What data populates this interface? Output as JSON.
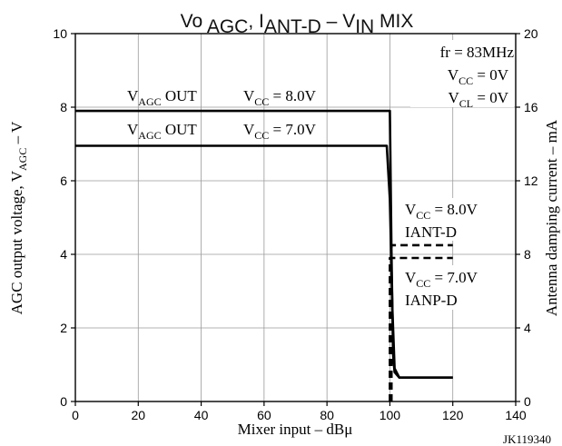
{
  "chart_data": {
    "type": "line",
    "title": {
      "part1": "Vo ",
      "part2": "AGC",
      "part3": ", I",
      "part4": "ANT-D",
      "part5": " – V",
      "part6": "IN",
      "part7": " MIX"
    },
    "xlabel": "Mixer input – dBμ",
    "ylabel_left": {
      "pre": "AGC output voltage, V",
      "sub": "AGC",
      "post": " – V"
    },
    "ylabel_right": "Antenna damping current – mA",
    "xlim": [
      0,
      140
    ],
    "ylim_left": [
      0,
      10
    ],
    "ylim_right": [
      0,
      20
    ],
    "x_ticks": [
      "0",
      "20",
      "40",
      "60",
      "80",
      "100",
      "120",
      "140"
    ],
    "y_left_ticks": [
      "0",
      "2",
      "4",
      "6",
      "8",
      "10"
    ],
    "y_right_ticks": [
      "0",
      "4",
      "8",
      "12",
      "16",
      "20"
    ],
    "grid": true,
    "series": [
      {
        "name": "VAGC OUT VCC = 8.0V",
        "axis": "left",
        "style": "solid",
        "points": [
          [
            0,
            7.9
          ],
          [
            100,
            7.9
          ],
          [
            100.5,
            4.0
          ],
          [
            101,
            1.3
          ],
          [
            101.5,
            0.8
          ],
          [
            103,
            0.65
          ],
          [
            120,
            0.65
          ]
        ]
      },
      {
        "name": "VAGC OUT VCC = 7.0V",
        "axis": "left",
        "style": "solid",
        "points": [
          [
            0,
            6.95
          ],
          [
            99,
            6.95
          ],
          [
            100,
            5.5
          ],
          [
            100.8,
            2.5
          ],
          [
            101.5,
            0.9
          ],
          [
            103,
            0.65
          ],
          [
            120,
            0.65
          ]
        ]
      },
      {
        "name": "IANT-D VCC = 8.0V",
        "axis": "right",
        "style": "dashed",
        "points": [
          [
            100.5,
            0
          ],
          [
            100.5,
            8.5
          ],
          [
            120,
            8.5
          ]
        ]
      },
      {
        "name": "IANP-D VCC = 7.0V",
        "axis": "right",
        "style": "dashed",
        "points": [
          [
            100,
            0
          ],
          [
            100,
            7.8
          ],
          [
            120,
            7.8
          ]
        ]
      }
    ],
    "annotations": {
      "cond1": "fr = 83MHz",
      "cond2_pre": "V",
      "cond2_sub": "CC",
      "cond2_post": " = 0V",
      "cond3_pre": "V",
      "cond3_sub": "CL",
      "cond3_post": " = 0V",
      "label_agc8_pre": "V",
      "label_agc8_sub": "AGC",
      "label_agc8_post": " OUT",
      "label_vcc8_pre": "V",
      "label_vcc8_sub": "CC",
      "label_vcc8_post": " = 8.0V",
      "label_agc7_pre": "V",
      "label_agc7_sub": "AGC",
      "label_agc7_post": " OUT",
      "label_vcc7_pre": "V",
      "label_vcc7_sub": "CC",
      "label_vcc7_post": " = 7.0V",
      "label_iant_vcc_pre": "V",
      "label_iant_vcc_sub": "CC",
      "label_iant_vcc_post": " = 8.0V",
      "label_iant": "IANT-D",
      "label_ianp_vcc_pre": "V",
      "label_ianp_vcc_sub": "CC",
      "label_ianp_vcc_post": " = 7.0V",
      "label_ianp": "IANP-D",
      "code": "JK119340"
    }
  }
}
